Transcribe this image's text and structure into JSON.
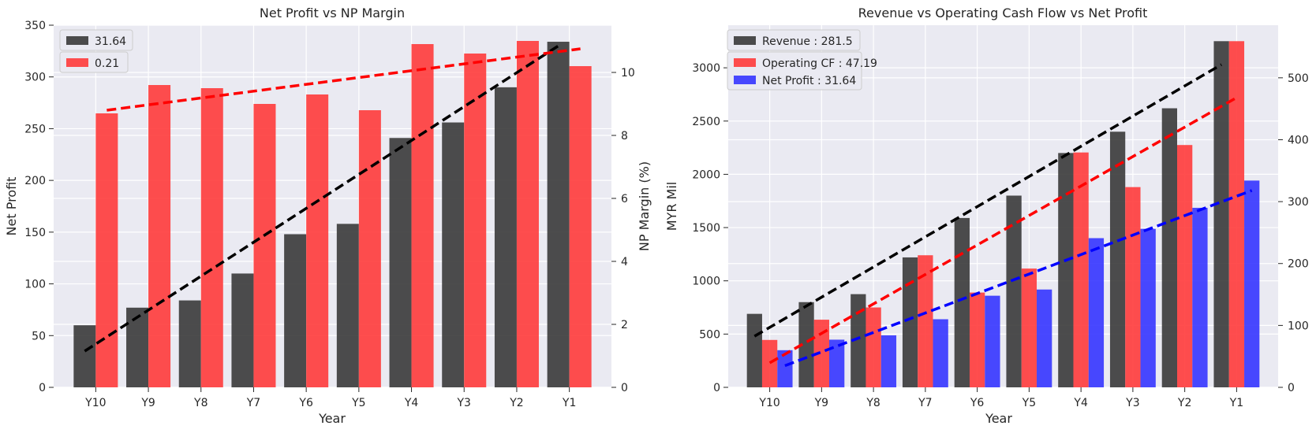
{
  "colors": {
    "background": "#eaeaf2",
    "grid": "#ffffff",
    "revenue": "#3a3a3a",
    "operating_cf": "#ff3b3b",
    "net_profit_blue": "#3535ff",
    "net_profit_dark": "#3a3a3a",
    "np_margin": "#ff3b3b",
    "trend_black": "#000000",
    "trend_red": "#ff0000",
    "trend_blue": "#0000ff"
  },
  "chart_data": [
    {
      "type": "bar",
      "title": "Net Profit vs NP Margin",
      "xlabel": "Year",
      "ylabel": "Net Profit",
      "ylabel_right": "NP Margin (%)",
      "categories": [
        "Y10",
        "Y9",
        "Y8",
        "Y7",
        "Y6",
        "Y5",
        "Y4",
        "Y3",
        "Y2",
        "Y1"
      ],
      "ylim": [
        0,
        350
      ],
      "ylim_right": [
        0,
        11.5
      ],
      "yticks": [
        0,
        50,
        100,
        150,
        200,
        250,
        300,
        350
      ],
      "yticks_right": [
        0,
        2,
        4,
        6,
        8,
        10
      ],
      "legend_position": "top-left",
      "grid": true,
      "series": [
        {
          "name": "31.64",
          "axis": "left",
          "values": [
            60,
            77,
            84,
            110,
            148,
            158,
            241,
            256,
            290,
            334
          ],
          "trend": [
            35,
            330
          ]
        },
        {
          "name": "0.21",
          "axis": "right",
          "values": [
            8.7,
            9.6,
            9.5,
            9.0,
            9.3,
            8.8,
            10.9,
            10.6,
            11.0,
            10.2
          ],
          "trend": [
            8.8,
            10.75
          ]
        }
      ]
    },
    {
      "type": "bar",
      "title": "Revenue vs Operating Cash Flow vs Net Profit",
      "xlabel": "Year",
      "ylabel": "MYR Mil",
      "categories": [
        "Y10",
        "Y9",
        "Y8",
        "Y7",
        "Y6",
        "Y5",
        "Y4",
        "Y3",
        "Y2",
        "Y1"
      ],
      "ylim": [
        0,
        3400
      ],
      "ylim_right": [
        0,
        585
      ],
      "yticks": [
        0,
        500,
        1000,
        1500,
        2000,
        2500,
        3000
      ],
      "yticks_right": [
        0,
        100,
        200,
        300,
        400,
        500
      ],
      "legend_position": "top-left",
      "grid": true,
      "series": [
        {
          "name": "Revenue : 281.5",
          "axis": "left",
          "values": [
            690,
            800,
            875,
            1220,
            1590,
            1800,
            2200,
            2400,
            2620,
            3250
          ],
          "trend": [
            480,
            3030
          ]
        },
        {
          "name": "Operating CF : 47.19",
          "axis": "left",
          "values": [
            445,
            635,
            750,
            1240,
            890,
            1115,
            2205,
            1880,
            2275,
            3250
          ],
          "trend": [
            230,
            2720
          ]
        },
        {
          "name": "Net Profit : 31.64",
          "axis": "right",
          "values": [
            60,
            77,
            84,
            110,
            148,
            158,
            241,
            256,
            290,
            334
          ],
          "trend": [
            35,
            318
          ]
        }
      ]
    }
  ]
}
